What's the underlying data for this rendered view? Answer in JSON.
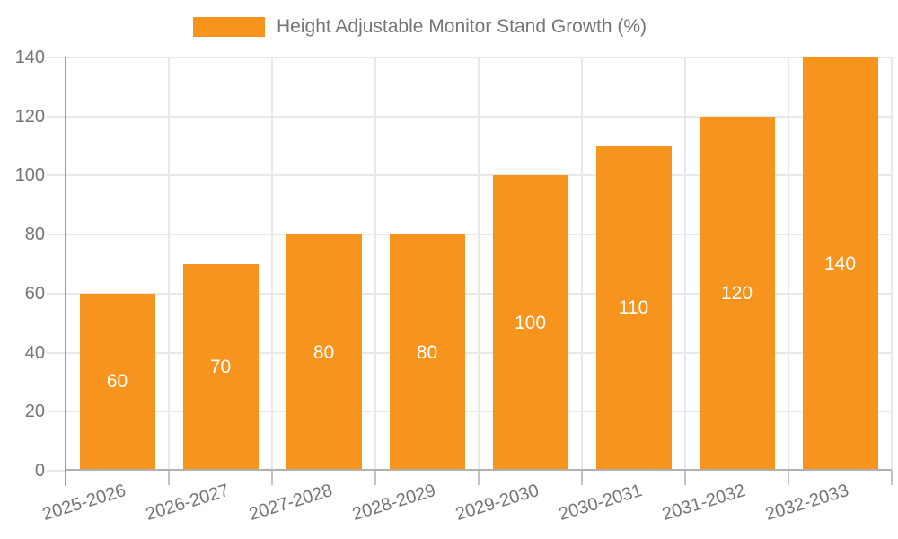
{
  "legend": {
    "label": "Height Adjustable Monitor Stand Growth (%)"
  },
  "colors": {
    "bar": "#f7941e",
    "axis_line": "#9b9b9b",
    "baseline": "#b1b1b1",
    "grid": "#e8e8e8",
    "x_tick": "#c2c2c2",
    "tick_label": "#757575",
    "legend_text": "#757575",
    "value_label": "#ffffff",
    "background": "#ffffff"
  },
  "chart_data": {
    "type": "bar",
    "title": "Height Adjustable Monitor Stand Growth (%)",
    "categories": [
      "2025-2026",
      "2026-2027",
      "2027-2028",
      "2028-2029",
      "2029-2030",
      "2030-2031",
      "2031-2032",
      "2032-2033"
    ],
    "values": [
      60,
      70,
      80,
      80,
      100,
      110,
      120,
      140
    ],
    "xlabel": "",
    "ylabel": "",
    "ylim": [
      0,
      140
    ],
    "yticks": [
      0,
      20,
      40,
      60,
      80,
      100,
      120,
      140
    ],
    "grid": true,
    "legend_position": "top",
    "bar_labels": true
  }
}
